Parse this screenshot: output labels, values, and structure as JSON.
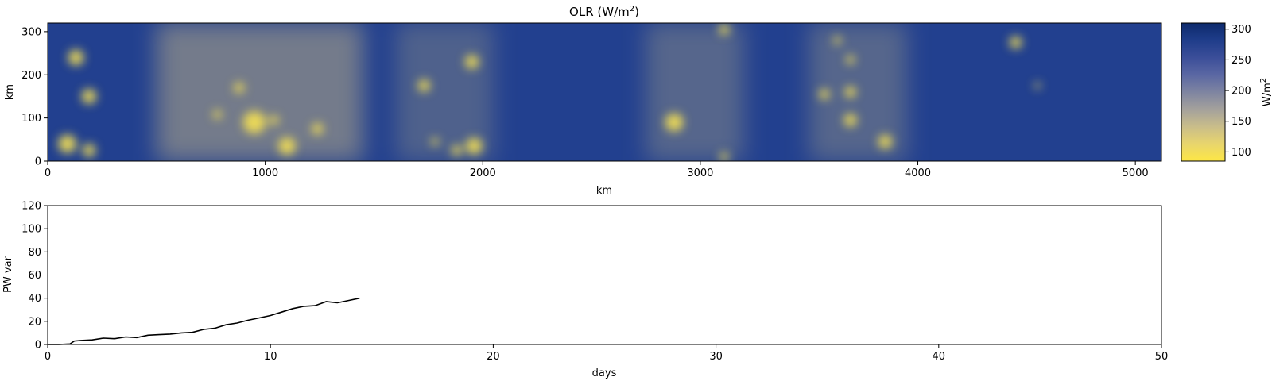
{
  "chart_data": [
    {
      "type": "heatmap",
      "title_main": "OLR (W/m",
      "title_sup": "2",
      "title_end": ")",
      "xlabel": "km",
      "ylabel": "km",
      "xlim": [
        0,
        5120
      ],
      "ylim": [
        0,
        320
      ],
      "xticks": [
        "0",
        "1000",
        "2000",
        "3000",
        "4000",
        "5000"
      ],
      "yticks": [
        "0",
        "100",
        "200",
        "300"
      ],
      "colorbar": {
        "label_main": "W/m",
        "label_sup": "2",
        "range": [
          85,
          310
        ],
        "ticks": [
          "100",
          "150",
          "200",
          "250",
          "300"
        ],
        "colors": [
          "#fde745",
          "#e8d56d",
          "#c9bd8a",
          "#a4a19c",
          "#7e84a1",
          "#5a67a3",
          "#3b4e99",
          "#1f3d8a",
          "#0d2a6c"
        ]
      },
      "background_color": "#22408f",
      "bright_cells": [
        {
          "x": 130,
          "y": 240,
          "r": 36
        },
        {
          "x": 190,
          "y": 150,
          "r": 34
        },
        {
          "x": 90,
          "y": 40,
          "r": 42
        },
        {
          "x": 190,
          "y": 25,
          "r": 30
        },
        {
          "x": 780,
          "y": 108,
          "r": 20
        },
        {
          "x": 880,
          "y": 170,
          "r": 24
        },
        {
          "x": 950,
          "y": 90,
          "r": 52
        },
        {
          "x": 1040,
          "y": 95,
          "r": 22
        },
        {
          "x": 1100,
          "y": 35,
          "r": 40
        },
        {
          "x": 1240,
          "y": 75,
          "r": 26
        },
        {
          "x": 1730,
          "y": 175,
          "r": 28
        },
        {
          "x": 1950,
          "y": 230,
          "r": 32
        },
        {
          "x": 1960,
          "y": 35,
          "r": 38
        },
        {
          "x": 1880,
          "y": 25,
          "r": 24
        },
        {
          "x": 1780,
          "y": 45,
          "r": 18
        },
        {
          "x": 3110,
          "y": 305,
          "r": 24
        },
        {
          "x": 2880,
          "y": 90,
          "r": 42
        },
        {
          "x": 3110,
          "y": 10,
          "r": 20
        },
        {
          "x": 3630,
          "y": 280,
          "r": 18
        },
        {
          "x": 3690,
          "y": 235,
          "r": 20
        },
        {
          "x": 3570,
          "y": 155,
          "r": 24
        },
        {
          "x": 3690,
          "y": 160,
          "r": 26
        },
        {
          "x": 3690,
          "y": 95,
          "r": 30
        },
        {
          "x": 3850,
          "y": 45,
          "r": 32
        },
        {
          "x": 4450,
          "y": 275,
          "r": 28
        },
        {
          "x": 4550,
          "y": 175,
          "r": 14
        }
      ],
      "haze_bands": [
        {
          "x0": 500,
          "x1": 1450,
          "level": 0.55
        },
        {
          "x0": 1600,
          "x1": 2050,
          "level": 0.3
        },
        {
          "x0": 2750,
          "x1": 3200,
          "level": 0.35
        },
        {
          "x0": 3500,
          "x1": 3950,
          "level": 0.35
        }
      ]
    },
    {
      "type": "line",
      "xlabel": "days",
      "ylabel": "PW var",
      "xlim": [
        0,
        50
      ],
      "ylim": [
        0,
        120
      ],
      "xticks": [
        "0",
        "10",
        "20",
        "30",
        "40",
        "50"
      ],
      "yticks": [
        "0",
        "20",
        "40",
        "60",
        "80",
        "100",
        "120"
      ],
      "line_color": "#000000",
      "x": [
        0,
        0.5,
        1.0,
        1.2,
        1.5,
        2.0,
        2.5,
        3.0,
        3.5,
        4.0,
        4.5,
        5.0,
        5.5,
        6.0,
        6.5,
        7.0,
        7.5,
        8.0,
        8.5,
        9.0,
        9.5,
        10.0,
        10.5,
        11.0,
        11.5,
        12.0,
        12.5,
        13.0,
        13.5,
        14.0
      ],
      "y": [
        0,
        0,
        0.5,
        3.0,
        3.5,
        4.0,
        5.5,
        5.0,
        6.5,
        6.0,
        8.0,
        8.5,
        9.0,
        10.0,
        10.5,
        13.0,
        14.0,
        17.0,
        18.5,
        21.0,
        23.0,
        25.0,
        28.0,
        31.0,
        33.0,
        33.5,
        37.0,
        36.0,
        38.0,
        40.0
      ]
    }
  ]
}
